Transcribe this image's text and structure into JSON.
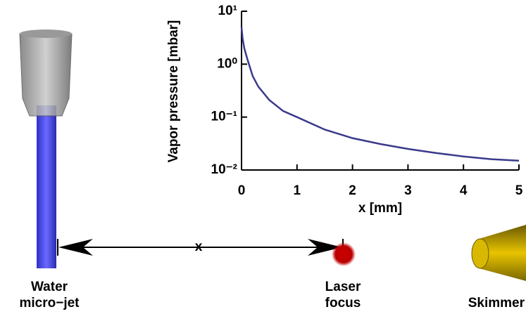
{
  "chart_data": {
    "type": "line",
    "y_label": "Vapor pressure [mbar]",
    "x_label": "x [mm]",
    "x": [
      0,
      0.02,
      0.05,
      0.1,
      0.2,
      0.3,
      0.5,
      0.75,
      1,
      1.5,
      2,
      2.5,
      3,
      3.5,
      4,
      4.5,
      5
    ],
    "values": [
      5,
      3,
      2,
      1.3,
      0.6,
      0.38,
      0.21,
      0.13,
      0.1,
      0.058,
      0.04,
      0.031,
      0.025,
      0.021,
      0.018,
      0.016,
      0.015
    ],
    "color": "#3a3a8c",
    "log_y": true,
    "xlim": [
      0,
      5
    ],
    "xticks": [
      0,
      1,
      2,
      3,
      4,
      5
    ],
    "ylim": [
      0.01,
      10
    ],
    "yticks": [
      {
        "value": 10,
        "label": "10¹"
      },
      {
        "value": 1,
        "label": "10⁰"
      },
      {
        "value": 0.1,
        "label": "10⁻¹"
      },
      {
        "value": 0.01,
        "label": "10⁻²"
      }
    ]
  },
  "labels": {
    "water_jet": [
      "Water",
      "micro−jet"
    ],
    "distance": "x",
    "laser_focus": [
      "Laser",
      "focus"
    ],
    "skimmer": "Skimmer"
  }
}
